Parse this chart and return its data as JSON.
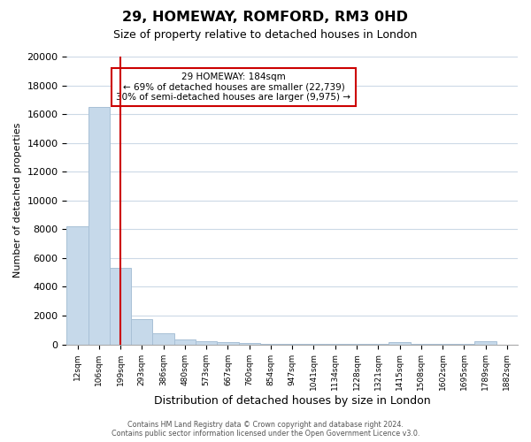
{
  "title": "29, HOMEWAY, ROMFORD, RM3 0HD",
  "subtitle": "Size of property relative to detached houses in London",
  "xlabel": "Distribution of detached houses by size in London",
  "ylabel": "Number of detached properties",
  "bar_values": [
    8200,
    16500,
    5300,
    1750,
    750,
    350,
    200,
    150,
    100,
    50,
    50,
    50,
    50,
    50,
    50,
    150,
    50,
    50,
    50,
    200
  ],
  "bar_labels": [
    "12sqm",
    "106sqm",
    "199sqm",
    "293sqm",
    "386sqm",
    "480sqm",
    "573sqm",
    "667sqm",
    "760sqm",
    "854sqm",
    "947sqm",
    "1041sqm",
    "1134sqm",
    "1228sqm",
    "1321sqm",
    "1415sqm",
    "1508sqm",
    "1602sqm",
    "1695sqm",
    "1789sqm"
  ],
  "extra_label": "1882sqm",
  "bar_color": "#c6d9ea",
  "bar_edge_color": "#a8c0d6",
  "vline_color": "#cc0000",
  "vline_position": 2.0,
  "annotation_title": "29 HOMEWAY: 184sqm",
  "annotation_line1": "← 69% of detached houses are smaller (22,739)",
  "annotation_line2": "30% of semi-detached houses are larger (9,975) →",
  "annotation_box_color": "#ffffff",
  "annotation_box_edge": "#cc0000",
  "ylim": [
    0,
    20000
  ],
  "yticks": [
    0,
    2000,
    4000,
    6000,
    8000,
    10000,
    12000,
    14000,
    16000,
    18000,
    20000
  ],
  "footer1": "Contains HM Land Registry data © Crown copyright and database right 2024.",
  "footer2": "Contains public sector information licensed under the Open Government Licence v3.0.",
  "bg_color": "#ffffff",
  "grid_color": "#ccd9e6"
}
